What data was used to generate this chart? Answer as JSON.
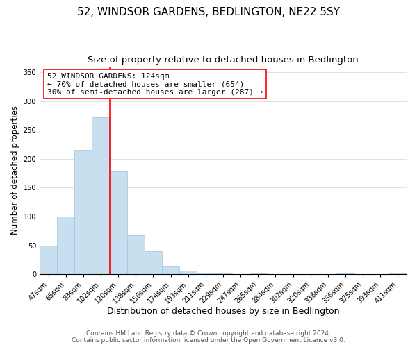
{
  "title": "52, WINDSOR GARDENS, BEDLINGTON, NE22 5SY",
  "subtitle": "Size of property relative to detached houses in Bedlington",
  "xlabel": "Distribution of detached houses by size in Bedlington",
  "ylabel": "Number of detached properties",
  "bar_labels": [
    "47sqm",
    "65sqm",
    "83sqm",
    "102sqm",
    "120sqm",
    "138sqm",
    "156sqm",
    "174sqm",
    "193sqm",
    "211sqm",
    "229sqm",
    "247sqm",
    "265sqm",
    "284sqm",
    "302sqm",
    "320sqm",
    "338sqm",
    "356sqm",
    "375sqm",
    "393sqm",
    "411sqm"
  ],
  "bar_values": [
    49,
    100,
    215,
    272,
    178,
    68,
    40,
    14,
    6,
    2,
    2,
    0,
    1,
    0,
    0,
    0,
    0,
    1,
    0,
    0,
    1
  ],
  "bar_color": "#c8dff0",
  "bar_edge_color": "#a0c4e0",
  "vline_index": 4,
  "vline_color": "red",
  "ylim": [
    0,
    360
  ],
  "yticks": [
    0,
    50,
    100,
    150,
    200,
    250,
    300,
    350
  ],
  "annotation_title": "52 WINDSOR GARDENS: 124sqm",
  "annotation_line1": "← 70% of detached houses are smaller (654)",
  "annotation_line2": "30% of semi-detached houses are larger (287) →",
  "annotation_box_color": "white",
  "annotation_box_edge": "red",
  "footer_line1": "Contains HM Land Registry data © Crown copyright and database right 2024.",
  "footer_line2": "Contains public sector information licensed under the Open Government Licence v3.0.",
  "title_fontsize": 11,
  "subtitle_fontsize": 9.5,
  "xlabel_fontsize": 9,
  "ylabel_fontsize": 8.5,
  "tick_fontsize": 7,
  "annotation_fontsize": 8,
  "footer_fontsize": 6.5
}
